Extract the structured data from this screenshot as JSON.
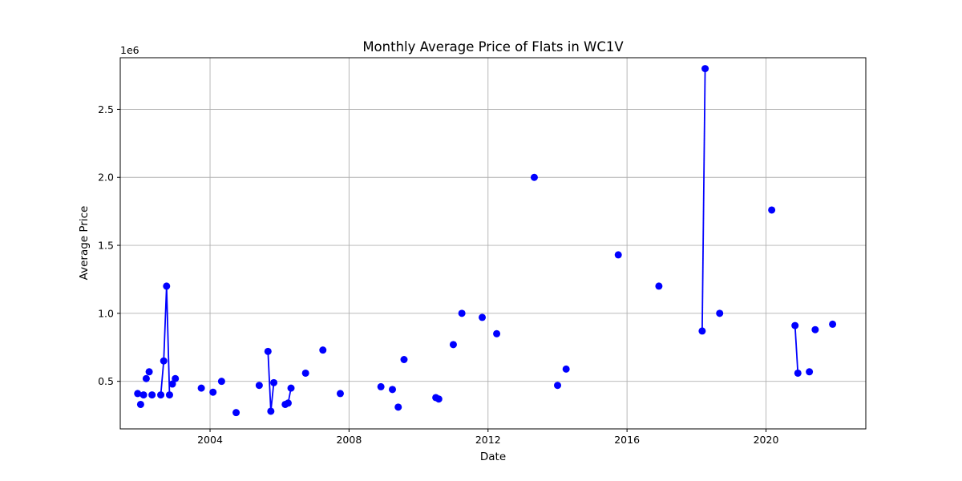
{
  "chart_data": {
    "type": "line",
    "title": "Monthly Average Price of Flats in WC1V",
    "xlabel": "Date",
    "ylabel": "Average Price",
    "y_offset_label": "1e6",
    "grid": true,
    "color": "#0000ff",
    "xlim": [
      "2001-06-01",
      "2022-11-15"
    ],
    "ylim": [
      0.15,
      2.88
    ],
    "x_ticks": [
      "2004",
      "2008",
      "2012",
      "2016",
      "2020"
    ],
    "y_ticks": [
      "0.5",
      "1.0",
      "1.5",
      "2.0",
      "2.5"
    ],
    "y_tick_values": [
      0.5,
      1.0,
      1.5,
      2.0,
      2.5
    ],
    "segments": [
      [
        [
          "2001-12",
          0.41
        ]
      ],
      [
        [
          "2002-01",
          0.33
        ]
      ],
      [
        [
          "2002-02",
          0.4
        ]
      ],
      [
        [
          "2002-03",
          0.52
        ]
      ],
      [
        [
          "2002-04",
          0.57
        ]
      ],
      [
        [
          "2002-05",
          0.4
        ]
      ],
      [
        [
          "2002-08",
          0.4
        ],
        [
          "2002-09",
          0.65
        ],
        [
          "2002-10",
          1.2
        ],
        [
          "2002-11",
          0.4
        ]
      ],
      [
        [
          "2002-12",
          0.48
        ]
      ],
      [
        [
          "2003-01",
          0.52
        ]
      ],
      [
        [
          "2003-10",
          0.45
        ]
      ],
      [
        [
          "2004-02",
          0.42
        ]
      ],
      [
        [
          "2004-05",
          0.5
        ]
      ],
      [
        [
          "2004-10",
          0.27
        ]
      ],
      [
        [
          "2005-06",
          0.47
        ]
      ],
      [
        [
          "2005-09",
          0.72
        ],
        [
          "2005-10",
          0.28
        ],
        [
          "2005-11",
          0.49
        ]
      ],
      [
        [
          "2006-03",
          0.33
        ],
        [
          "2006-04",
          0.34
        ],
        [
          "2006-05",
          0.45
        ]
      ],
      [
        [
          "2006-10",
          0.56
        ]
      ],
      [
        [
          "2007-04",
          0.73
        ]
      ],
      [
        [
          "2007-10",
          0.41
        ]
      ],
      [
        [
          "2008-12",
          0.46
        ]
      ],
      [
        [
          "2009-04",
          0.44
        ]
      ],
      [
        [
          "2009-06",
          0.31
        ]
      ],
      [
        [
          "2009-08",
          0.66
        ]
      ],
      [
        [
          "2010-07",
          0.38
        ],
        [
          "2010-08",
          0.37
        ]
      ],
      [
        [
          "2011-01",
          0.77
        ]
      ],
      [
        [
          "2011-04",
          1.0
        ]
      ],
      [
        [
          "2011-11",
          0.97
        ]
      ],
      [
        [
          "2012-04",
          0.85
        ]
      ],
      [
        [
          "2013-05",
          2.0
        ]
      ],
      [
        [
          "2014-01",
          0.47
        ]
      ],
      [
        [
          "2014-04",
          0.59
        ]
      ],
      [
        [
          "2015-10",
          1.43
        ]
      ],
      [
        [
          "2016-12",
          1.2
        ]
      ],
      [
        [
          "2018-03",
          0.87
        ],
        [
          "2018-04",
          2.8
        ]
      ],
      [
        [
          "2018-09",
          1.0
        ]
      ],
      [
        [
          "2020-03",
          1.76
        ]
      ],
      [
        [
          "2020-11",
          0.91
        ],
        [
          "2020-12",
          0.56
        ]
      ],
      [
        [
          "2021-04",
          0.57
        ]
      ],
      [
        [
          "2021-06",
          0.88
        ]
      ],
      [
        [
          "2021-12",
          0.92
        ]
      ]
    ]
  }
}
